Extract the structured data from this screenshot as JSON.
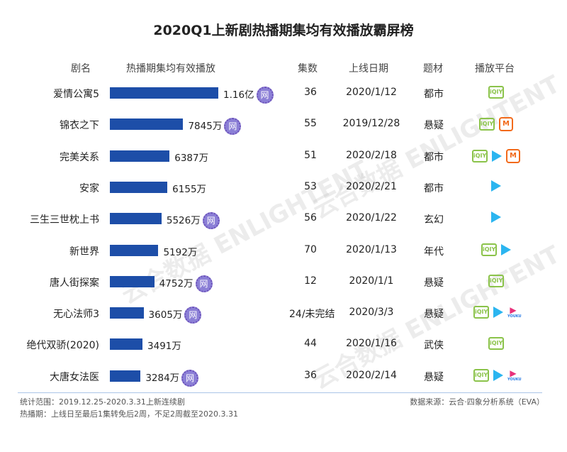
{
  "chart_data": {
    "type": "bar",
    "title": "2020Q1上新剧热播期集均有效播放霸屏榜",
    "unit": "万",
    "headers": [
      "剧名",
      "热播期集均有效播放",
      "集数",
      "上线日期",
      "题材",
      "播放平台"
    ],
    "rows": [
      {
        "name": "爱情公寓5",
        "value": 11600,
        "label": "1.16亿",
        "net": true,
        "episodes": "36",
        "date": "2020/1/12",
        "genre": "都市",
        "platforms": [
          "iqiyi"
        ]
      },
      {
        "name": "锦衣之下",
        "value": 7845,
        "label": "7845万",
        "net": true,
        "episodes": "55",
        "date": "2019/12/28",
        "genre": "悬疑",
        "platforms": [
          "iqiyi",
          "mango"
        ]
      },
      {
        "name": "完美关系",
        "value": 6387,
        "label": "6387万",
        "net": false,
        "episodes": "51",
        "date": "2020/2/18",
        "genre": "都市",
        "platforms": [
          "iqiyi",
          "tencent",
          "mango"
        ]
      },
      {
        "name": "安家",
        "value": 6155,
        "label": "6155万",
        "net": false,
        "episodes": "53",
        "date": "2020/2/21",
        "genre": "都市",
        "platforms": [
          "tencent"
        ]
      },
      {
        "name": "三生三世枕上书",
        "value": 5526,
        "label": "5526万",
        "net": true,
        "episodes": "56",
        "date": "2020/1/22",
        "genre": "玄幻",
        "platforms": [
          "tencent"
        ]
      },
      {
        "name": "新世界",
        "value": 5192,
        "label": "5192万",
        "net": false,
        "episodes": "70",
        "date": "2020/1/13",
        "genre": "年代",
        "platforms": [
          "iqiyi",
          "tencent"
        ]
      },
      {
        "name": "唐人街探案",
        "value": 4752,
        "label": "4752万",
        "net": true,
        "episodes": "12",
        "date": "2020/1/1",
        "genre": "悬疑",
        "platforms": [
          "iqiyi"
        ]
      },
      {
        "name": "无心法师3",
        "value": 3605,
        "label": "3605万",
        "net": true,
        "episodes": "24/未完结",
        "date": "2020/3/3",
        "genre": "悬疑",
        "platforms": [
          "iqiyi",
          "tencent",
          "youku"
        ]
      },
      {
        "name": "绝代双骄(2020)",
        "value": 3491,
        "label": "3491万",
        "net": false,
        "episodes": "44",
        "date": "2020/1/16",
        "genre": "武侠",
        "platforms": [
          "iqiyi"
        ]
      },
      {
        "name": "大唐女法医",
        "value": 3284,
        "label": "3284万",
        "net": true,
        "episodes": "36",
        "date": "2020/2/14",
        "genre": "悬疑",
        "platforms": [
          "iqiyi",
          "tencent",
          "youku"
        ]
      }
    ],
    "xlim": [
      0,
      11600
    ]
  },
  "net_badge": "网",
  "icons": {
    "iqiyi": "iQIY",
    "mango": "M",
    "youku": "YOUKU"
  },
  "colors": {
    "bar": "#1d4ea8",
    "iqiyi": "#8bc34a",
    "tencent": "#2bb5f0",
    "mango": "#f26a1b",
    "youku": "#e8307a",
    "badge": "#8b7fd6"
  },
  "footer": {
    "scope": "统计范围：2019.12.25-2020.3.31上新连续剧",
    "period": "热播期：上线日至最后1集转免后2周，不足2周截至2020.3.31",
    "source": "数据来源：云合·四象分析系统（EVA）"
  },
  "watermark": "云合数据 ENLIGHTENT"
}
